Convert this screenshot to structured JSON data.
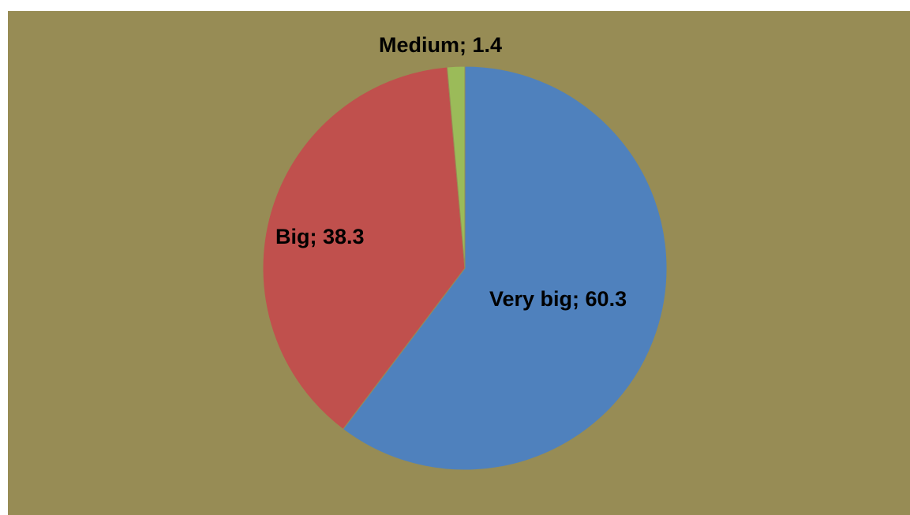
{
  "chart_data": {
    "type": "pie",
    "title": "",
    "slices": [
      {
        "label": "Very big",
        "value": 60.3,
        "color": "#4f81bd"
      },
      {
        "label": "Big",
        "value": 38.3,
        "color": "#c0504d"
      },
      {
        "label": "Medium",
        "value": 1.4,
        "color": "#9bbb59"
      }
    ],
    "data_labels": [
      "Very big; 60.3",
      "Big; 38.3",
      "Medium; 1.4"
    ],
    "start_angle": "12 o'clock",
    "direction": "clockwise",
    "background_color": "#978c55",
    "legend": "none"
  }
}
